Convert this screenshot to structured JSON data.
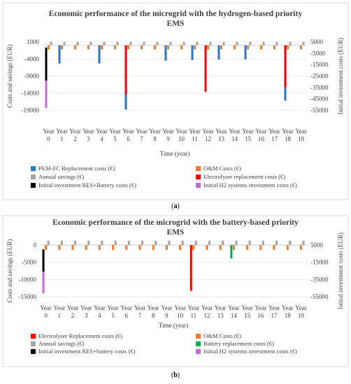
{
  "chart_data": [
    {
      "type": "bar",
      "panel_label": "a",
      "title_lines": [
        "Economic performance of the microgrid with the hydrogen-based priority",
        "EMS"
      ],
      "xlabel": "Time (year)",
      "ylabel": "Costs and savings (EUR)",
      "y2label": "Initial investment costs (EUR)",
      "category_prefix": "Year",
      "categories": [
        "0",
        "1",
        "2",
        "3",
        "4",
        "5",
        "6",
        "7",
        "8",
        "9",
        "10",
        "11",
        "12",
        "13",
        "14",
        "15",
        "16",
        "17",
        "18",
        "19"
      ],
      "ylim": [
        -19000,
        1000
      ],
      "yticks": [
        1000,
        -4000,
        -9000,
        -14000,
        -19000
      ],
      "ylim_secondary": [
        -55000,
        5000
      ],
      "yticks_secondary": [
        5000,
        -5000,
        -15000,
        -25000,
        -35000,
        -45000,
        -55000
      ],
      "grid": true,
      "legend_position": "bottom",
      "legend_columns": 2,
      "series": [
        {
          "name": "PEM-FC Replacement costs (€)",
          "color": "#2e75c9",
          "axis": "primary",
          "offset": -1,
          "values": [
            0,
            -5300,
            0,
            0,
            -5300,
            0,
            -18800,
            0,
            0,
            -4500,
            0,
            -4300,
            0,
            -4200,
            0,
            -4100,
            0,
            0,
            -16200,
            0
          ]
        },
        {
          "name": "O&M Costs (€)",
          "color": "#ed7d31",
          "axis": "primary",
          "offset": 0,
          "values": [
            -1200,
            -1200,
            -1200,
            -1200,
            -1200,
            -1200,
            -1200,
            -1200,
            -1200,
            -1200,
            -1200,
            -1200,
            -1200,
            -1200,
            -1200,
            -1200,
            -1200,
            -1200,
            -1200,
            -1200
          ]
        },
        {
          "name": "Annual savings (€)",
          "color": "#a5a5a5",
          "axis": "primary",
          "offset": 1,
          "values": [
            1000,
            1000,
            1000,
            1000,
            1000,
            1000,
            1000,
            1000,
            1000,
            1000,
            1000,
            1000,
            1000,
            1000,
            1000,
            1000,
            1000,
            1000,
            1000,
            1000
          ]
        },
        {
          "name": "Electrolyser replacement costs (€)",
          "color": "#ff0000",
          "axis": "primary",
          "offset": -1,
          "values": [
            0,
            0,
            0,
            0,
            0,
            0,
            -14300,
            0,
            0,
            0,
            0,
            0,
            -13600,
            0,
            0,
            0,
            0,
            0,
            -12300,
            0
          ]
        },
        {
          "name": "Initial investment RES+Battery costs (€)",
          "color": "#000000",
          "axis": "secondary",
          "offset": -1,
          "stack": "inv",
          "values": [
            -29000,
            0,
            0,
            0,
            0,
            0,
            0,
            0,
            0,
            0,
            0,
            0,
            0,
            0,
            0,
            0,
            0,
            0,
            0,
            0
          ]
        },
        {
          "name": "Initial H2 systems investment costs (€)",
          "color": "#c86dd7",
          "axis": "secondary",
          "offset": -1,
          "stack": "inv",
          "values": [
            -24000,
            0,
            0,
            0,
            0,
            0,
            0,
            0,
            0,
            0,
            0,
            0,
            0,
            0,
            0,
            0,
            0,
            0,
            0,
            0
          ]
        }
      ]
    },
    {
      "type": "bar",
      "panel_label": "b",
      "title_lines": [
        "Economic performance of the microgrid with the battery-based priority",
        "EMS"
      ],
      "xlabel": "Time (year)",
      "ylabel": "Costs and savings (EUR)",
      "y2label": "Initial investment costs (EUR)",
      "category_prefix": "Year",
      "categories": [
        "0",
        "1",
        "2",
        "3",
        "4",
        "5",
        "6",
        "7",
        "8",
        "9",
        "10",
        "11",
        "12",
        "13",
        "14",
        "15",
        "16",
        "17",
        "18",
        "19"
      ],
      "ylim": [
        -15000,
        0
      ],
      "yticks": [
        0,
        -5000,
        -10000,
        -15000
      ],
      "ylim_secondary": [
        -55000,
        5000
      ],
      "yticks_secondary": [
        5000,
        -15000,
        -35000,
        -55000
      ],
      "grid": true,
      "legend_position": "bottom",
      "legend_columns": 2,
      "series": [
        {
          "name": "Electrolyser Replacement costs (€)",
          "color": "#ff0000",
          "axis": "primary",
          "offset": -1,
          "values": [
            0,
            0,
            0,
            0,
            0,
            0,
            0,
            0,
            0,
            0,
            0,
            -13300,
            0,
            0,
            0,
            0,
            0,
            0,
            0,
            0
          ]
        },
        {
          "name": "O&M Costs (€)",
          "color": "#ed7d31",
          "axis": "primary",
          "offset": 0,
          "values": [
            -1400,
            -1400,
            -1400,
            -1400,
            -1400,
            -1400,
            -1400,
            -1400,
            -1400,
            -1400,
            -1400,
            -1400,
            -1400,
            -1400,
            -1400,
            -1400,
            -1400,
            -1400,
            -1400,
            -1400
          ]
        },
        {
          "name": "Annual savings (€)",
          "color": "#a5a5a5",
          "axis": "primary",
          "offset": 1,
          "values": [
            1300,
            1300,
            1300,
            1300,
            1300,
            1300,
            1300,
            1300,
            1300,
            1300,
            1300,
            1300,
            1300,
            1300,
            1300,
            1300,
            1300,
            1300,
            1300,
            1300
          ]
        },
        {
          "name": "Battery replacement costs (€)",
          "color": "#00b050",
          "axis": "primary",
          "offset": -1,
          "values": [
            0,
            0,
            0,
            0,
            0,
            0,
            0,
            0,
            0,
            0,
            0,
            0,
            0,
            0,
            -3900,
            0,
            0,
            0,
            0,
            0
          ]
        },
        {
          "name": "Initial investment RES+battery costs (€)",
          "color": "#000000",
          "axis": "secondary",
          "offset": -1,
          "stack": "inv",
          "values": [
            -26000,
            0,
            0,
            0,
            0,
            0,
            0,
            0,
            0,
            0,
            0,
            0,
            0,
            0,
            0,
            0,
            0,
            0,
            0,
            0
          ]
        },
        {
          "name": "Initial H2 systems investment costs (€)",
          "color": "#c86dd7",
          "axis": "secondary",
          "offset": -1,
          "stack": "inv",
          "values": [
            -25000,
            0,
            0,
            0,
            0,
            0,
            0,
            0,
            0,
            0,
            0,
            0,
            0,
            0,
            0,
            0,
            0,
            0,
            0,
            0
          ]
        }
      ]
    }
  ]
}
